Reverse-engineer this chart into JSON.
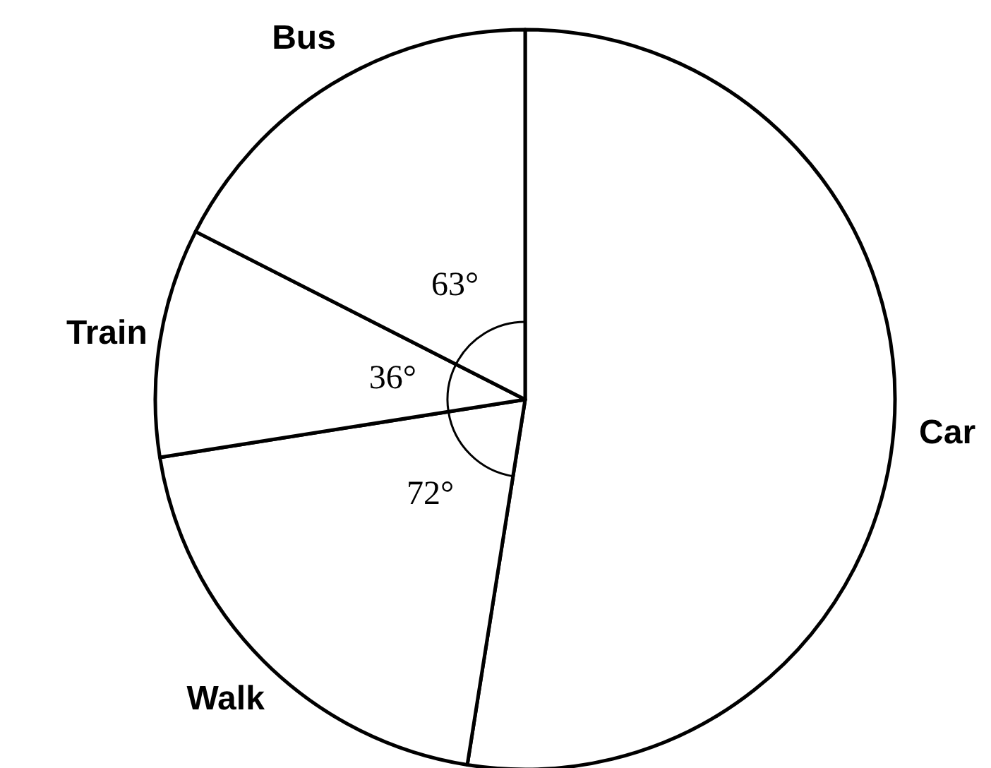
{
  "chart_data": {
    "type": "pie",
    "categories": [
      "Car",
      "Walk",
      "Train",
      "Bus"
    ],
    "values": [
      189,
      72,
      36,
      63
    ],
    "colors": [
      "#ffffff",
      "#ffffff",
      "#ffffff",
      "#ffffff"
    ],
    "value_labels": [
      null,
      "72°",
      "36°",
      "63°"
    ]
  }
}
